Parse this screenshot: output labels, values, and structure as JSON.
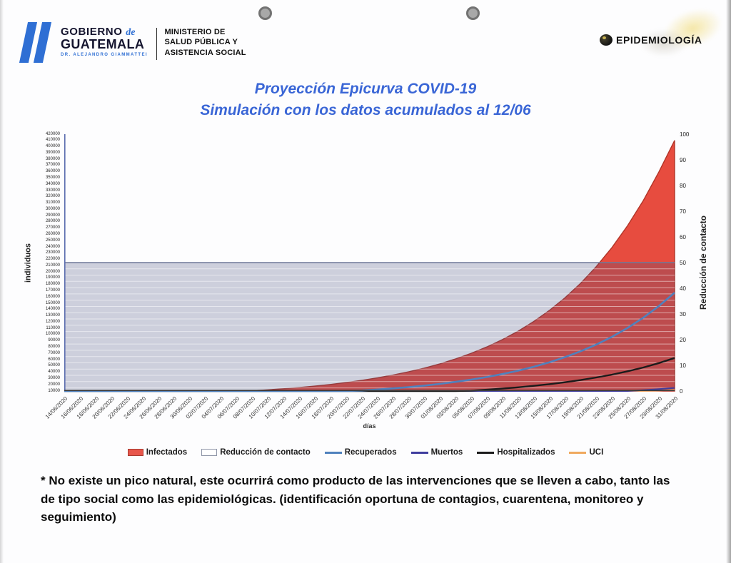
{
  "header": {
    "gobierno_line1": "GOBIERNO",
    "gobierno_de": "de",
    "gobierno_line2": "GUATEMALA",
    "gobierno_sub": "DR. ALEJANDRO GIAMMATTEI",
    "ministerio_lines": [
      "MINISTERIO DE",
      "SALUD PÚBLICA Y",
      "ASISTENCIA SOCIAL"
    ],
    "epidemiologia": "EPIDEMIOLOGÍA"
  },
  "chart_data": {
    "type": "area",
    "title": "Proyección Epicurva COVID-19",
    "subtitle": "Simulación con los datos acumulados al 12/06",
    "xlabel": "días",
    "ylabel_left": "individuos",
    "ylabel_right": "Reducción de contacto",
    "grid": "horizontal stripes inside reduction band only",
    "legend_position": "bottom",
    "x": [
      "14/06/2020",
      "16/06/2020",
      "18/06/2020",
      "20/06/2020",
      "22/06/2020",
      "24/06/2020",
      "26/06/2020",
      "28/06/2020",
      "30/06/2020",
      "02/07/2020",
      "04/07/2020",
      "06/07/2020",
      "08/07/2020",
      "10/07/2020",
      "12/07/2020",
      "14/07/2020",
      "16/07/2020",
      "18/07/2020",
      "20/07/2020",
      "22/07/2020",
      "24/07/2020",
      "26/07/2020",
      "28/07/2020",
      "30/07/2020",
      "01/08/2020",
      "03/08/2020",
      "05/08/2020",
      "07/08/2020",
      "09/08/2020",
      "11/08/2020",
      "13/08/2020",
      "15/08/2020",
      "17/08/2020",
      "19/08/2020",
      "21/08/2020",
      "23/08/2020",
      "25/08/2020",
      "27/08/2020",
      "29/08/2020",
      "31/08/2020"
    ],
    "left_axis": {
      "min": 10000,
      "max": 420000,
      "step": 10000
    },
    "right_axis": {
      "min": 0,
      "max": 100,
      "step": 10
    },
    "series": [
      {
        "name": "Infectados",
        "type": "area",
        "axis": "left",
        "color": "#e74c3f",
        "border": "#b13528",
        "values": [
          2000,
          2300,
          2650,
          3050,
          3500,
          4000,
          4600,
          5250,
          6000,
          6900,
          7900,
          9050,
          10400,
          11900,
          13600,
          15600,
          17900,
          20500,
          23500,
          27000,
          31000,
          35500,
          40700,
          46600,
          53400,
          61200,
          70200,
          80400,
          92100,
          105600,
          121000,
          138700,
          158900,
          182100,
          208700,
          239200,
          274100,
          314100,
          360000,
          410000
        ]
      },
      {
        "name": "Reducción de contacto",
        "type": "band",
        "axis": "right",
        "value": 50,
        "color": "rgba(70,78,124,0.26)",
        "top_line": "#6e7898"
      },
      {
        "name": "Recuperados",
        "type": "line",
        "axis": "left",
        "color": "#4f81bd",
        "values": [
          800,
          920,
          1050,
          1210,
          1380,
          1590,
          1820,
          2090,
          2390,
          2750,
          3150,
          3610,
          4140,
          4750,
          5450,
          6250,
          7160,
          8210,
          9420,
          10800,
          12400,
          14200,
          16300,
          18700,
          21400,
          24600,
          28200,
          32300,
          37100,
          42500,
          48700,
          55900,
          64100,
          73500,
          84300,
          96600,
          110800,
          127100,
          145800,
          167000
        ]
      },
      {
        "name": "Muertos",
        "type": "line",
        "axis": "left",
        "color": "#3f3d9e",
        "values": [
          65,
          75,
          86,
          99,
          113,
          130,
          150,
          172,
          198,
          227,
          261,
          300,
          345,
          397,
          456,
          525,
          603,
          694,
          798,
          917,
          1055,
          1213,
          1395,
          1604,
          1845,
          2121,
          2439,
          2805,
          3226,
          3710,
          4266,
          4906,
          5642,
          6488,
          7461,
          8580,
          9867,
          11347,
          13049,
          15000
        ]
      },
      {
        "name": "Hospitalizados",
        "type": "line",
        "axis": "left",
        "color": "#1b1b1b",
        "values": [
          300,
          345,
          395,
          455,
          520,
          595,
          685,
          785,
          900,
          1030,
          1180,
          1355,
          1555,
          1780,
          2040,
          2340,
          2690,
          3080,
          3530,
          4050,
          4650,
          5330,
          6110,
          7000,
          8030,
          9210,
          10560,
          12110,
          13890,
          15930,
          18270,
          20950,
          24020,
          27550,
          31590,
          36230,
          41550,
          47640,
          54630,
          62700
        ]
      },
      {
        "name": "UCI",
        "type": "line",
        "axis": "left",
        "color": "#f0a95f",
        "values": [
          52,
          60,
          69,
          79,
          91,
          105,
          120,
          138,
          159,
          183,
          210,
          242,
          278,
          320,
          368,
          423,
          486,
          559,
          643,
          739,
          850,
          978,
          1124,
          1293,
          1487,
          1710,
          1966,
          2261,
          2600,
          2990,
          3439,
          3954,
          4547,
          5229,
          6014,
          6916,
          7953,
          9146,
          10518,
          12100
        ]
      }
    ]
  },
  "legend": [
    {
      "label": "Infectados",
      "swatch": "box",
      "fill": "#e8564b",
      "border": "#a93c32"
    },
    {
      "label": "Reducción de contacto",
      "swatch": "box",
      "fill": "#ffffff",
      "border": "#8f96a8"
    },
    {
      "label": "Recuperados",
      "swatch": "line",
      "fill": "#4f81bd"
    },
    {
      "label": "Muertos",
      "swatch": "line",
      "fill": "#3f3d9e"
    },
    {
      "label": "Hospitalizados",
      "swatch": "line",
      "fill": "#1b1b1b"
    },
    {
      "label": "UCI",
      "swatch": "line",
      "fill": "#f0a95f"
    }
  ],
  "footnote": "* No existe un pico natural, este ocurrirá como producto de las intervenciones que se lleven a cabo, tanto las de tipo social como las epidemiológicas. (identificación oportuna de contagios, cuarentena, monitoreo y seguimiento)"
}
